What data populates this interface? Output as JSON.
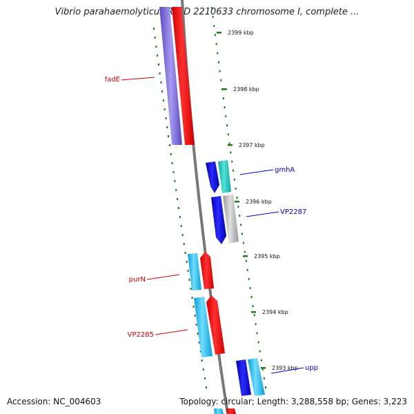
{
  "title": "Vibrio parahaemolyticus RIMD 2210633 chromosome I, complete ...",
  "footer": {
    "accession": "Accession: NC_004603",
    "topology": "Topology: circular; Length: 3,288,558 bp; Genes: 3,223"
  },
  "ticks": [
    {
      "label": "2399 kbp"
    },
    {
      "label": "2398 kbp"
    },
    {
      "label": "2397 kbp"
    },
    {
      "label": "2396 kbp"
    },
    {
      "label": "2395 kbp"
    },
    {
      "label": "2394 kbp"
    },
    {
      "label": "2393 kbp"
    }
  ],
  "genes": [
    {
      "name": "fadE",
      "color": "#7b68d9",
      "strand": "minus",
      "label_color": "#cc0000"
    },
    {
      "name": "gmhA",
      "color": "#1aa6a6",
      "strand": "plus",
      "label_color": "#0000cc"
    },
    {
      "name": "VP2287",
      "color": "#aaaaaa",
      "strand": "plus",
      "label_color": "#0000cc"
    },
    {
      "name": "purN",
      "color": "#e00000",
      "strand": "minus",
      "label_color": "#cc0000"
    },
    {
      "name": "VP2285",
      "color": "#e00000",
      "strand": "minus",
      "label_color": "#cc0000"
    },
    {
      "name": "upp",
      "color": "#22aadd",
      "strand": "plus",
      "label_color": "#0000cc"
    }
  ],
  "colors": {
    "backbone": "#777777",
    "tick_green": "#1a7a1a",
    "red_feature": "#ee0000",
    "blue_feature": "#1010dd",
    "cyan_feature": "#22bbe8",
    "purple_feature": "#7a68d6",
    "gray_feature": "#b8b8b8",
    "teal_feature": "#18b8b0"
  }
}
